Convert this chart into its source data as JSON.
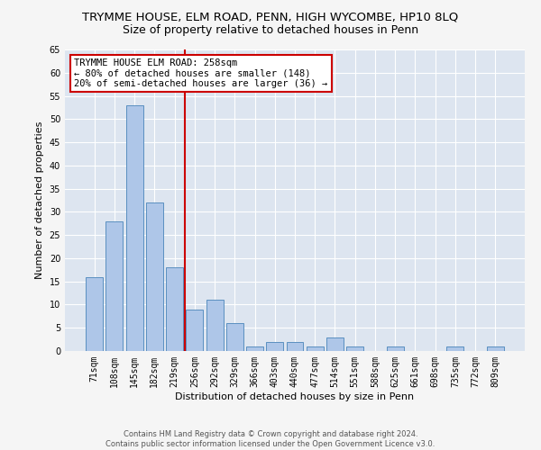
{
  "title": "TRYMME HOUSE, ELM ROAD, PENN, HIGH WYCOMBE, HP10 8LQ",
  "subtitle": "Size of property relative to detached houses in Penn",
  "xlabel": "Distribution of detached houses by size in Penn",
  "ylabel": "Number of detached properties",
  "footer_line1": "Contains HM Land Registry data © Crown copyright and database right 2024.",
  "footer_line2": "Contains public sector information licensed under the Open Government Licence v3.0.",
  "categories": [
    "71sqm",
    "108sqm",
    "145sqm",
    "182sqm",
    "219sqm",
    "256sqm",
    "292sqm",
    "329sqm",
    "366sqm",
    "403sqm",
    "440sqm",
    "477sqm",
    "514sqm",
    "551sqm",
    "588sqm",
    "625sqm",
    "661sqm",
    "698sqm",
    "735sqm",
    "772sqm",
    "809sqm"
  ],
  "values": [
    16,
    28,
    53,
    32,
    18,
    9,
    11,
    6,
    1,
    2,
    2,
    1,
    3,
    1,
    0,
    1,
    0,
    0,
    1,
    0,
    1
  ],
  "bar_color": "#aec6e8",
  "bar_edge_color": "#5a8fc0",
  "vline_index": 5,
  "vline_color": "#cc0000",
  "annotation_text": "TRYMME HOUSE ELM ROAD: 258sqm\n← 80% of detached houses are smaller (148)\n20% of semi-detached houses are larger (36) →",
  "annotation_box_color": "#ffffff",
  "annotation_box_edge": "#cc0000",
  "ylim": [
    0,
    65
  ],
  "yticks": [
    0,
    5,
    10,
    15,
    20,
    25,
    30,
    35,
    40,
    45,
    50,
    55,
    60,
    65
  ],
  "background_color": "#dde5f0",
  "grid_color": "#ffffff",
  "title_fontsize": 9.5,
  "subtitle_fontsize": 9,
  "axis_label_fontsize": 8,
  "tick_fontsize": 7,
  "annotation_fontsize": 7.5,
  "footer_fontsize": 6
}
